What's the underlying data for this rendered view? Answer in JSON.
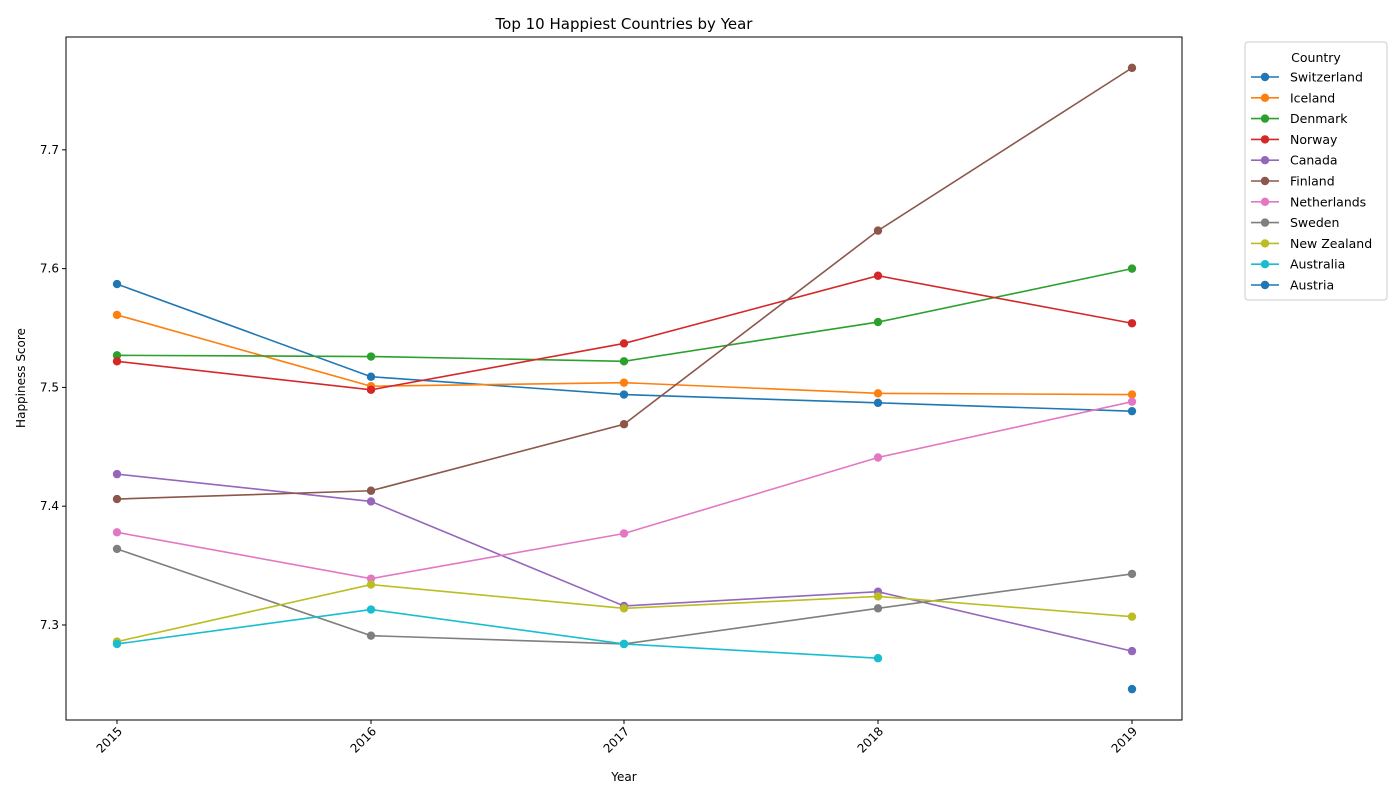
{
  "chart_data": {
    "type": "line",
    "title": "Top 10 Happiest Countries by Year",
    "xlabel": "Year",
    "ylabel": "Happiness Score",
    "x": [
      2015,
      2016,
      2017,
      2018,
      2019
    ],
    "xticks": [
      "2015",
      "2016",
      "2017",
      "2018",
      "2019"
    ],
    "ylim": [
      7.22,
      7.795
    ],
    "yticks": [
      7.3,
      7.4,
      7.5,
      7.6,
      7.7
    ],
    "ytick_labels": [
      "7.3",
      "7.4",
      "7.5",
      "7.6",
      "7.7"
    ],
    "grid": false,
    "legend": {
      "title": "Country",
      "placement": "outside-right"
    },
    "series": [
      {
        "name": "Switzerland",
        "color": "#1f77b4",
        "values": [
          7.587,
          7.509,
          7.494,
          7.487,
          7.48
        ]
      },
      {
        "name": "Iceland",
        "color": "#ff7f0e",
        "values": [
          7.561,
          7.501,
          7.504,
          7.495,
          7.494
        ]
      },
      {
        "name": "Denmark",
        "color": "#2ca02c",
        "values": [
          7.527,
          7.526,
          7.522,
          7.555,
          7.6
        ]
      },
      {
        "name": "Norway",
        "color": "#d62728",
        "values": [
          7.522,
          7.498,
          7.537,
          7.594,
          7.554
        ]
      },
      {
        "name": "Canada",
        "color": "#9467bd",
        "values": [
          7.427,
          7.404,
          7.316,
          7.328,
          7.278
        ]
      },
      {
        "name": "Finland",
        "color": "#8c564b",
        "values": [
          7.406,
          7.413,
          7.469,
          7.632,
          7.769
        ]
      },
      {
        "name": "Netherlands",
        "color": "#e377c2",
        "values": [
          7.378,
          7.339,
          7.377,
          7.441,
          7.488
        ]
      },
      {
        "name": "Sweden",
        "color": "#7f7f7f",
        "values": [
          7.364,
          7.291,
          7.284,
          7.314,
          7.343
        ]
      },
      {
        "name": "New Zealand",
        "color": "#bcbd22",
        "values": [
          7.286,
          7.334,
          7.314,
          7.324,
          7.307
        ]
      },
      {
        "name": "Australia",
        "color": "#17becf",
        "values": [
          7.284,
          7.313,
          7.284,
          7.272,
          null
        ]
      },
      {
        "name": "Austria",
        "color": "#1f77b4",
        "values": [
          null,
          null,
          null,
          null,
          7.246
        ]
      }
    ]
  }
}
